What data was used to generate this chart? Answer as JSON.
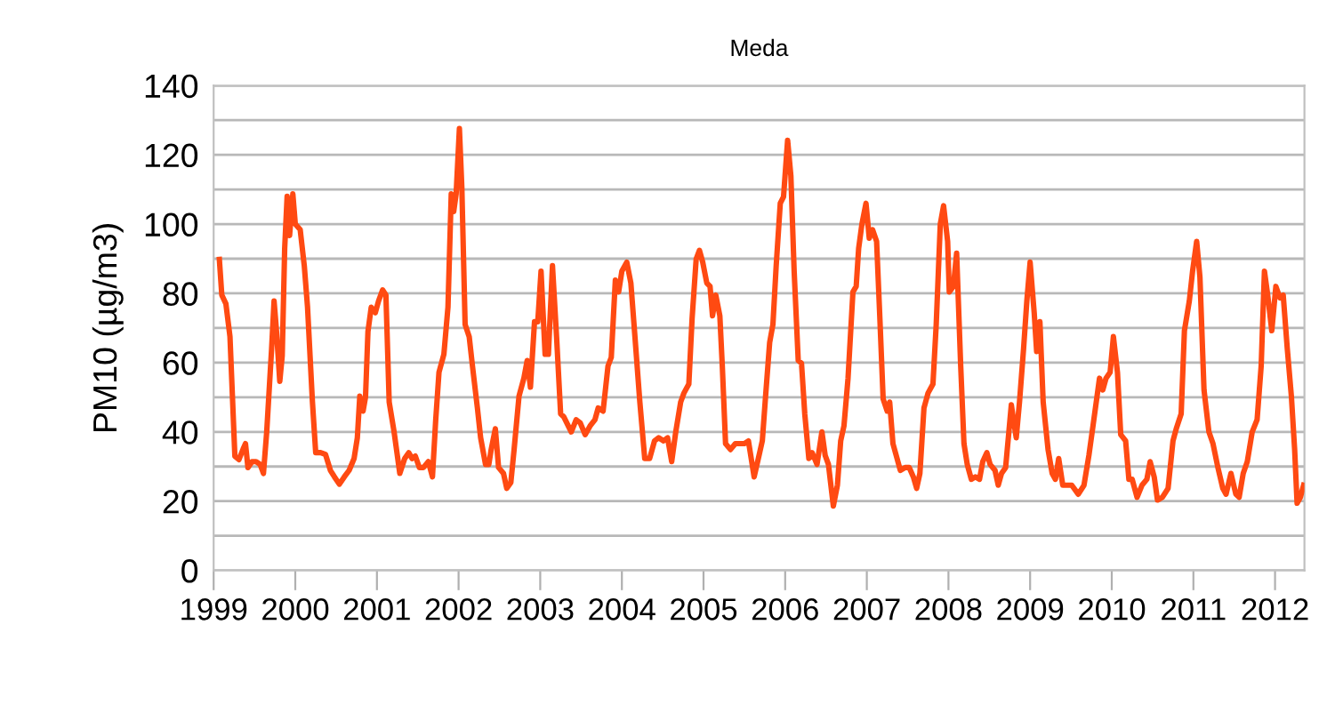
{
  "chart_data": {
    "type": "line",
    "title": "Meda",
    "ylabel": "PM10 (µg/m3)",
    "series": [
      {
        "color": "#ff4a12",
        "x": [
          1999.07,
          1999.1,
          1999.15,
          1999.2,
          1999.26,
          1999.31,
          1999.36,
          1999.39,
          1999.42,
          1999.47,
          1999.52,
          1999.57,
          1999.61,
          1999.65,
          1999.71,
          1999.74,
          1999.77,
          1999.81,
          1999.84,
          1999.87,
          1999.9,
          1999.93,
          1999.97,
          2000.0,
          2000.06,
          2000.11,
          2000.15,
          2000.21,
          2000.25,
          2000.31,
          2000.37,
          2000.43,
          2000.48,
          2000.54,
          2000.6,
          2000.66,
          2000.72,
          2000.76,
          2000.79,
          2000.83,
          2000.86,
          2000.89,
          2000.93,
          2000.98,
          2001.02,
          2001.07,
          2001.11,
          2001.15,
          2001.21,
          2001.28,
          2001.34,
          2001.39,
          2001.43,
          2001.47,
          2001.52,
          2001.57,
          2001.63,
          2001.68,
          2001.72,
          2001.76,
          2001.82,
          2001.87,
          2001.91,
          2001.94,
          2001.97,
          2002.01,
          2002.04,
          2002.08,
          2002.13,
          2002.17,
          2002.23,
          2002.27,
          2002.33,
          2002.37,
          2002.4,
          2002.45,
          2002.49,
          2002.55,
          2002.59,
          2002.64,
          2002.68,
          2002.74,
          2002.8,
          2002.84,
          2002.88,
          2002.93,
          2002.97,
          2003.01,
          2003.06,
          2003.1,
          2003.15,
          2003.2,
          2003.25,
          2003.29,
          2003.38,
          2003.44,
          2003.49,
          2003.55,
          2003.61,
          2003.67,
          2003.71,
          2003.77,
          2003.83,
          2003.87,
          2003.92,
          2003.96,
          2004.0,
          2004.06,
          2004.11,
          2004.16,
          2004.22,
          2004.28,
          2004.34,
          2004.4,
          2004.45,
          2004.51,
          2004.56,
          2004.61,
          2004.66,
          2004.72,
          2004.76,
          2004.82,
          2004.86,
          2004.91,
          2004.95,
          2004.99,
          2005.04,
          2005.08,
          2005.11,
          2005.15,
          2005.2,
          2005.23,
          2005.27,
          2005.33,
          2005.39,
          2005.44,
          2005.5,
          2005.55,
          2005.62,
          2005.68,
          2005.72,
          2005.76,
          2005.81,
          2005.85,
          2005.89,
          2005.94,
          2005.98,
          2006.03,
          2006.07,
          2006.11,
          2006.16,
          2006.2,
          2006.24,
          2006.29,
          2006.33,
          2006.39,
          2006.45,
          2006.49,
          2006.53,
          2006.59,
          2006.64,
          2006.68,
          2006.72,
          2006.77,
          2006.83,
          2006.87,
          2006.9,
          2006.94,
          2006.99,
          2007.03,
          2007.07,
          2007.12,
          2007.16,
          2007.2,
          2007.25,
          2007.28,
          2007.32,
          2007.36,
          2007.41,
          2007.47,
          2007.52,
          2007.57,
          2007.61,
          2007.65,
          2007.7,
          2007.72,
          2007.75,
          2007.81,
          2007.85,
          2007.9,
          2007.94,
          2007.99,
          2008.01,
          2008.06,
          2008.1,
          2008.15,
          2008.19,
          2008.23,
          2008.28,
          2008.33,
          2008.38,
          2008.42,
          2008.47,
          2008.51,
          2008.57,
          2008.61,
          2008.65,
          2008.7,
          2008.74,
          2008.77,
          2008.83,
          2008.87,
          2008.92,
          2008.96,
          2009.0,
          2009.05,
          2009.08,
          2009.12,
          2009.16,
          2009.22,
          2009.27,
          2009.31,
          2009.35,
          2009.4,
          2009.45,
          2009.51,
          2009.59,
          2009.66,
          2009.72,
          2009.77,
          2009.82,
          2009.85,
          2009.89,
          2009.93,
          2009.98,
          2010.02,
          2010.07,
          2010.11,
          2010.17,
          2010.21,
          2010.25,
          2010.31,
          2010.37,
          2010.43,
          2010.47,
          2010.52,
          2010.56,
          2010.62,
          2010.69,
          2010.75,
          2010.79,
          2010.85,
          2010.89,
          2010.95,
          2010.99,
          2011.04,
          2011.08,
          2011.13,
          2011.19,
          2011.24,
          2011.3,
          2011.36,
          2011.4,
          2011.46,
          2011.52,
          2011.56,
          2011.61,
          2011.66,
          2011.72,
          2011.78,
          2011.83,
          2011.87,
          2011.91,
          2011.96,
          2012.01,
          2012.06,
          2012.1,
          2012.15,
          2012.2,
          2012.24,
          2012.27,
          2012.31,
          2012.35
        ],
        "values": [
          89.8,
          79.5,
          77,
          67.5,
          33,
          32,
          35,
          36.6,
          29.7,
          31.4,
          31.4,
          30.6,
          28,
          40,
          64,
          77.8,
          69,
          54.6,
          62,
          93,
          108,
          96.7,
          108.7,
          100,
          98.4,
          88,
          76,
          48.6,
          34,
          34,
          33.5,
          28.9,
          27,
          24.9,
          27,
          28.9,
          32.3,
          38.3,
          50.3,
          46,
          50,
          69,
          76,
          74.4,
          77.8,
          81,
          79.5,
          48.6,
          40,
          28,
          32.3,
          34,
          32.3,
          33,
          29.7,
          29.7,
          31.4,
          27,
          43.5,
          57.2,
          62.4,
          76,
          108.7,
          103.6,
          108.7,
          127.6,
          110.5,
          71,
          67.5,
          59,
          47,
          38.3,
          30.6,
          30.6,
          35,
          40.9,
          29.7,
          28,
          23.7,
          25.4,
          34.9,
          50.3,
          55.5,
          60.6,
          52.9,
          71.8,
          71.8,
          86.4,
          62.4,
          62.4,
          88,
          67.5,
          45.2,
          44.3,
          40,
          43.5,
          42.6,
          39.2,
          41.7,
          43.5,
          46.9,
          46,
          59,
          61.5,
          83.8,
          80.4,
          86.4,
          89,
          83,
          67.5,
          48.6,
          32.3,
          32.3,
          37.4,
          38.3,
          37.4,
          38.3,
          31.4,
          40,
          48.6,
          51.2,
          53.8,
          72.7,
          89.9,
          92.4,
          89,
          83,
          82,
          73.5,
          79.5,
          73.5,
          59,
          36.6,
          34.9,
          36.6,
          36.6,
          36.6,
          37.4,
          27,
          33.2,
          37.4,
          50.3,
          65.8,
          71,
          88,
          106,
          107.9,
          124.2,
          113.9,
          86.4,
          60.6,
          59.8,
          45.2,
          32.3,
          34,
          30.6,
          40,
          33.2,
          30.6,
          18.6,
          24.6,
          37.4,
          41.7,
          55.5,
          80.4,
          82,
          93,
          100,
          106,
          95.9,
          98.4,
          95,
          72.7,
          49.5,
          46,
          48.6,
          36.6,
          33.2,
          28.9,
          29.7,
          29.7,
          27,
          23.7,
          28,
          46.9,
          48.6,
          51.2,
          53.8,
          71,
          100,
          105.3,
          95,
          80.4,
          82,
          91.6,
          59,
          36.6,
          30.6,
          26.3,
          27,
          26.3,
          31.4,
          34,
          30.6,
          28.9,
          24.6,
          28,
          29.7,
          40,
          47.8,
          38.3,
          48.6,
          64,
          77.8,
          89,
          74.4,
          63.2,
          71.8,
          48.6,
          34.9,
          28,
          26.3,
          32.3,
          24.6,
          24.6,
          24.6,
          22,
          24.6,
          33.2,
          41.7,
          50.3,
          55.5,
          52.1,
          55.5,
          57.2,
          67.5,
          57.2,
          39.2,
          37.4,
          26.3,
          26.3,
          21.1,
          24.6,
          26.3,
          31.4,
          27,
          20.3,
          21.1,
          23.7,
          37.4,
          40.9,
          45.2,
          69.2,
          77.8,
          86.4,
          95,
          84.7,
          52.1,
          40,
          36.6,
          29.7,
          23.7,
          22,
          28,
          22,
          21.1,
          28,
          31.4,
          40,
          43.5,
          59,
          86.4,
          79.5,
          69.2,
          82,
          78.7,
          79.5,
          64,
          50.3,
          34.9,
          19.4,
          21.1,
          24.6
        ]
      }
    ],
    "xlim": [
      1999,
      2012.36
    ],
    "xticks": [
      1999,
      2000,
      2001,
      2002,
      2003,
      2004,
      2005,
      2006,
      2007,
      2008,
      2009,
      2010,
      2011,
      2012
    ],
    "ylim": [
      0,
      140
    ],
    "yticks": [
      0,
      {
        "value": 10,
        "label": null
      },
      20,
      {
        "value": 30,
        "label": null
      },
      40,
      {
        "value": 50,
        "label": null
      },
      60,
      {
        "value": 70,
        "label": null
      },
      80,
      {
        "value": 90,
        "label": null
      },
      100,
      {
        "value": 110,
        "label": null
      },
      120,
      {
        "value": 130,
        "label": null
      },
      140
    ],
    "grid": "y",
    "line_style": "solid",
    "marker": "none"
  }
}
